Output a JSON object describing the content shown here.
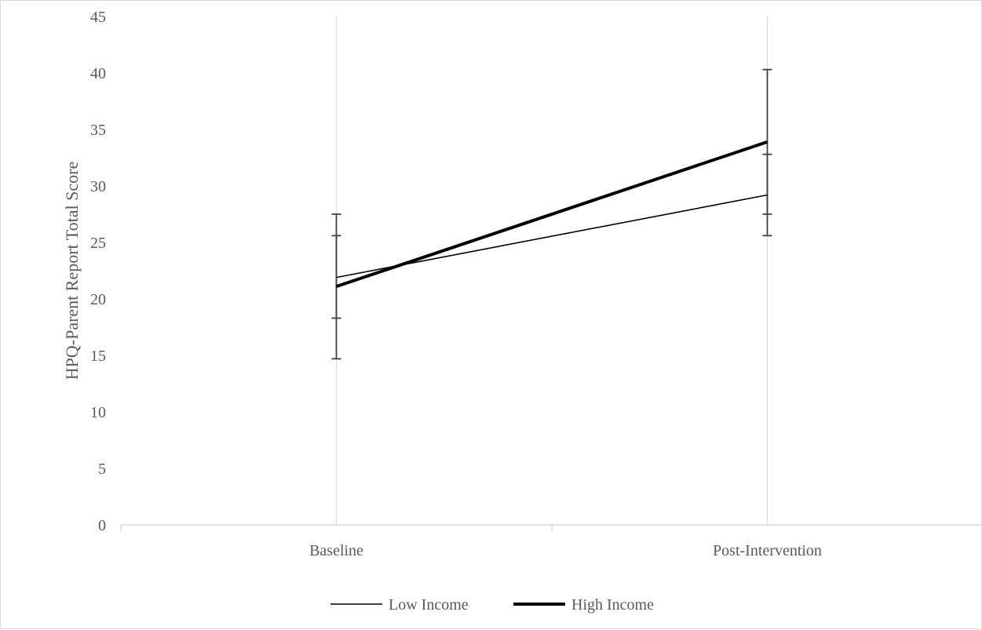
{
  "chart_data": {
    "type": "line",
    "title": "",
    "xlabel": "",
    "ylabel": "HPQ-Parent Report Total Score",
    "categories": [
      "Baseline",
      "Post-Intervention"
    ],
    "ylim": [
      0,
      45
    ],
    "yticks": [
      0,
      5,
      10,
      15,
      20,
      25,
      30,
      35,
      40,
      45
    ],
    "ytick_labels": [
      "0",
      "5",
      "10",
      "15",
      "20",
      "25",
      "30",
      "35",
      "40",
      "45"
    ],
    "grid": "vertical",
    "legend_position": "bottom",
    "series": [
      {
        "name": "Low Income",
        "values": [
          21.9,
          29.2
        ],
        "error_low": [
          18.3,
          25.6
        ],
        "error_high": [
          25.6,
          32.8
        ],
        "color": "#000000",
        "style": "thin"
      },
      {
        "name": "High Income",
        "values": [
          21.1,
          33.9
        ],
        "error_low": [
          14.7,
          27.5
        ],
        "error_high": [
          27.5,
          40.3
        ],
        "color": "#000000",
        "style": "thick"
      }
    ],
    "colors": {
      "axis": "#d9d9d9",
      "grid": "#d9d9d9",
      "text": "#595959",
      "errorbar": "#404040"
    }
  }
}
